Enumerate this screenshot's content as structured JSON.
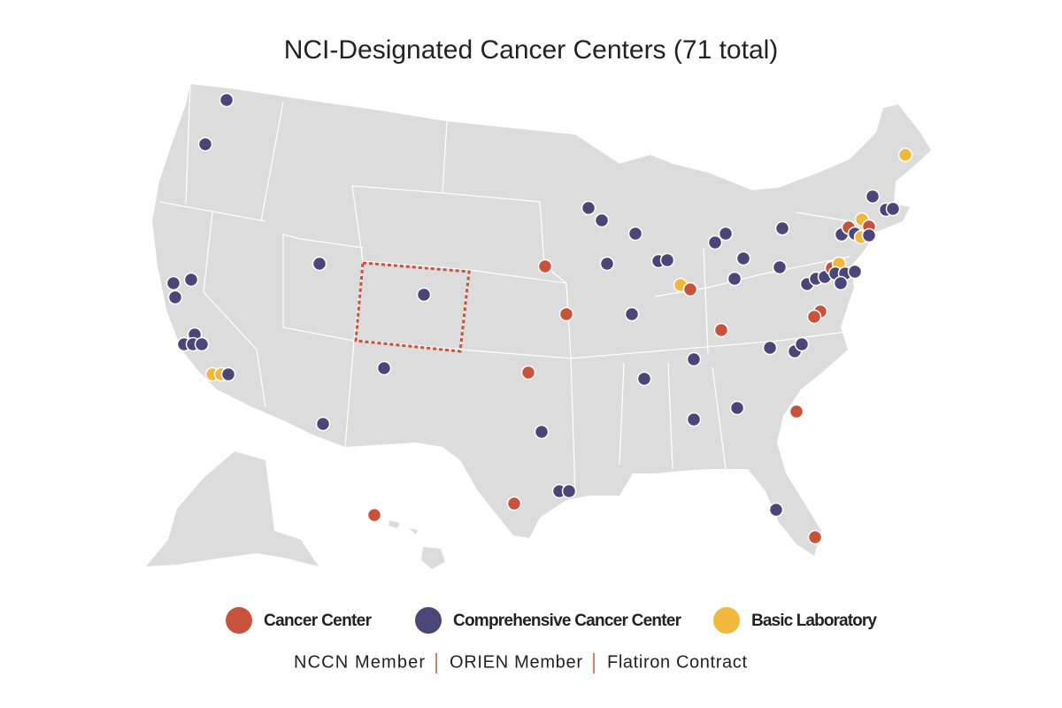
{
  "title": "NCI-Designated Cancer Centers (71 total)",
  "legend": [
    {
      "label": "Cancer Center",
      "color": "#c9523a"
    },
    {
      "label": "Comprehensive Cancer Center",
      "color": "#4a4778"
    },
    {
      "label": "Basic Laboratory",
      "color": "#f0b93d"
    }
  ],
  "footer": [
    "NCCN Member",
    "ORIEN Member",
    "Flatiron Contract"
  ]
}
